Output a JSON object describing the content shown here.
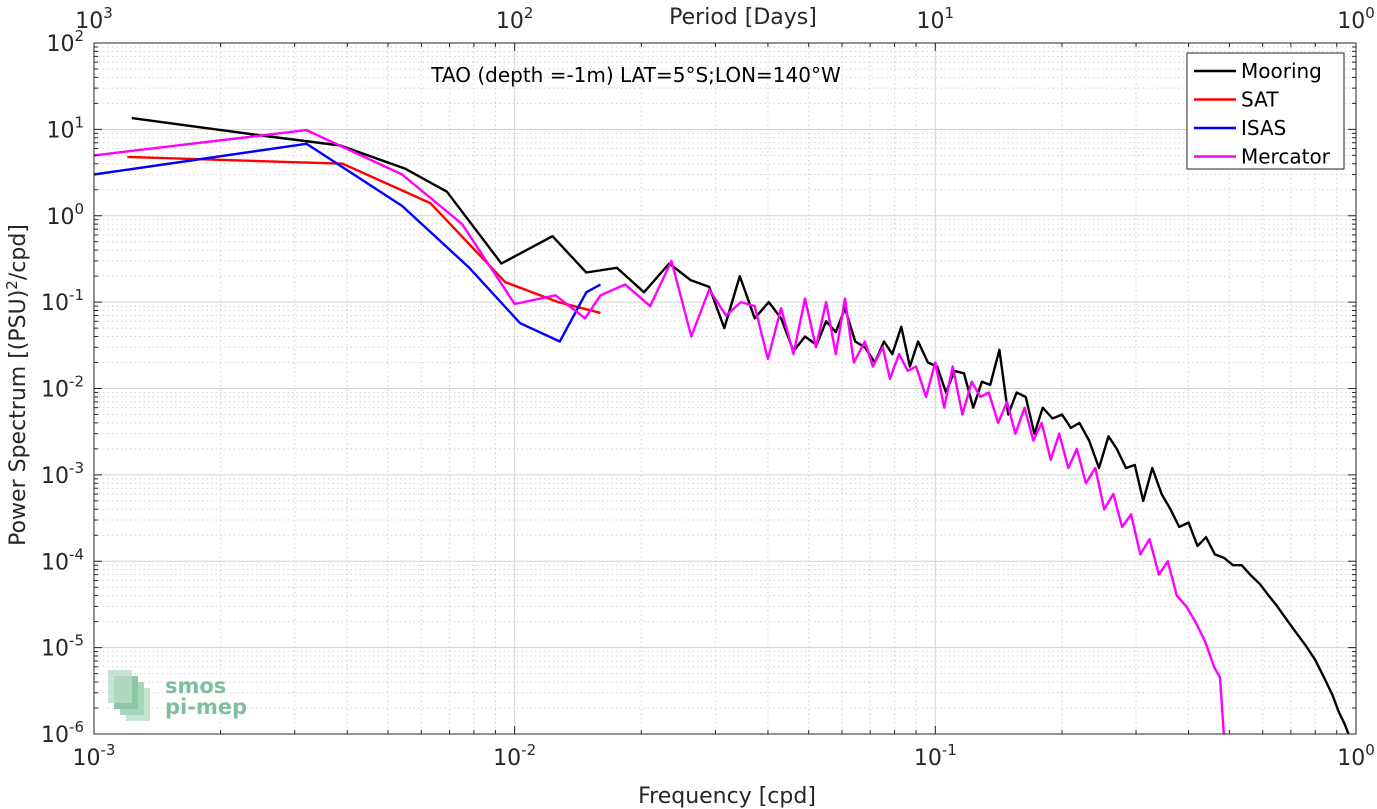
{
  "chart_data": {
    "type": "line",
    "title": "TAO (depth =-1m) LAT=5°S;LON=140°W",
    "xlabel": "Frequency [cpd]",
    "ylabel": "Power Spectrum [(PSU)²/cpd]",
    "ylabel_main": "Power Spectrum [(PSU)",
    "ylabel_sup": "2",
    "ylabel_end": "/cpd]",
    "x2label": "Period [Days]",
    "xscale": "log",
    "yscale": "log",
    "xlim": [
      0.001,
      1
    ],
    "ylim": [
      1e-06,
      100
    ],
    "grid": true,
    "legend_position": "top-right",
    "x_ticks": [
      {
        "value": 0.001,
        "base": "10",
        "exp": "-3"
      },
      {
        "value": 0.01,
        "base": "10",
        "exp": "-2"
      },
      {
        "value": 0.1,
        "base": "10",
        "exp": "-1"
      },
      {
        "value": 1,
        "base": "10",
        "exp": "0"
      }
    ],
    "x2_ticks": [
      {
        "value": 0.001,
        "base": "10",
        "exp": "3"
      },
      {
        "value": 0.01,
        "base": "10",
        "exp": "2"
      },
      {
        "value": 0.1,
        "base": "10",
        "exp": "1"
      },
      {
        "value": 1,
        "base": "10",
        "exp": "0"
      }
    ],
    "y_ticks": [
      {
        "value": 100,
        "base": "10",
        "exp": "2"
      },
      {
        "value": 10,
        "base": "10",
        "exp": "1"
      },
      {
        "value": 1,
        "base": "10",
        "exp": "0"
      },
      {
        "value": 0.1,
        "base": "10",
        "exp": "-1"
      },
      {
        "value": 0.01,
        "base": "10",
        "exp": "-2"
      },
      {
        "value": 0.001,
        "base": "10",
        "exp": "-3"
      },
      {
        "value": 0.0001,
        "base": "10",
        "exp": "-4"
      },
      {
        "value": 1e-05,
        "base": "10",
        "exp": "-5"
      },
      {
        "value": 1e-06,
        "base": "10",
        "exp": "-6"
      }
    ],
    "series": [
      {
        "name": "Mooring",
        "color": "#000000",
        "x": [
          0.00123,
          0.0025,
          0.00385,
          0.0055,
          0.0069,
          0.0093,
          0.0123,
          0.0148,
          0.0175,
          0.0203,
          0.0233,
          0.0262,
          0.029,
          0.0315,
          0.0343,
          0.0372,
          0.0402,
          0.043,
          0.046,
          0.049,
          0.0522,
          0.055,
          0.058,
          0.061,
          0.0645,
          0.068,
          0.0718,
          0.0755,
          0.079,
          0.083,
          0.087,
          0.091,
          0.096,
          0.101,
          0.106,
          0.111,
          0.117,
          0.123,
          0.129,
          0.135,
          0.142,
          0.149,
          0.156,
          0.164,
          0.172,
          0.18,
          0.19,
          0.2,
          0.21,
          0.22,
          0.232,
          0.245,
          0.258,
          0.27,
          0.284,
          0.298,
          0.312,
          0.328,
          0.345,
          0.362,
          0.38,
          0.4,
          0.42,
          0.44,
          0.462,
          0.485,
          0.51,
          0.535,
          0.56,
          0.59,
          0.62,
          0.65,
          0.68,
          0.72,
          0.76,
          0.8,
          0.84,
          0.88,
          0.91,
          0.94,
          0.96
        ],
        "y": [
          13.5,
          8.5,
          6.5,
          3.5,
          1.9,
          0.28,
          0.58,
          0.22,
          0.25,
          0.13,
          0.28,
          0.18,
          0.15,
          0.05,
          0.2,
          0.065,
          0.1,
          0.065,
          0.027,
          0.04,
          0.032,
          0.06,
          0.045,
          0.085,
          0.035,
          0.03,
          0.02,
          0.035,
          0.025,
          0.052,
          0.018,
          0.035,
          0.02,
          0.018,
          0.009,
          0.016,
          0.015,
          0.006,
          0.012,
          0.011,
          0.028,
          0.005,
          0.009,
          0.008,
          0.003,
          0.006,
          0.0045,
          0.005,
          0.0035,
          0.004,
          0.0025,
          0.0012,
          0.0028,
          0.002,
          0.0012,
          0.0013,
          0.0005,
          0.0012,
          0.0006,
          0.0004,
          0.00025,
          0.00028,
          0.00015,
          0.00019,
          0.00012,
          0.00011,
          9e-05,
          9e-05,
          7e-05,
          5.5e-05,
          4e-05,
          3e-05,
          2.2e-05,
          1.5e-05,
          1.05e-05,
          7.2e-06,
          4.5e-06,
          2.8e-06,
          1.8e-06,
          1.3e-06,
          1e-06
        ]
      },
      {
        "name": "SAT",
        "color": "#ff0000",
        "x": [
          0.0012,
          0.0039,
          0.0063,
          0.0095,
          0.0127,
          0.016
        ],
        "y": [
          4.8,
          4.0,
          1.4,
          0.17,
          0.1,
          0.075
        ]
      },
      {
        "name": "ISAS",
        "color": "#0000ff",
        "x": [
          0.001,
          0.0032,
          0.0054,
          0.0078,
          0.0103,
          0.0128,
          0.0148,
          0.016
        ],
        "y": [
          3.0,
          6.8,
          1.3,
          0.25,
          0.057,
          0.035,
          0.13,
          0.16
        ]
      },
      {
        "name": "Mercator",
        "color": "#ff00ff",
        "x": [
          0.001,
          0.0032,
          0.0054,
          0.0075,
          0.01,
          0.0125,
          0.0147,
          0.016,
          0.0183,
          0.021,
          0.0236,
          0.0263,
          0.029,
          0.0318,
          0.0345,
          0.0372,
          0.04,
          0.043,
          0.046,
          0.049,
          0.052,
          0.055,
          0.058,
          0.061,
          0.064,
          0.068,
          0.071,
          0.075,
          0.078,
          0.082,
          0.086,
          0.09,
          0.095,
          0.1,
          0.105,
          0.11,
          0.116,
          0.122,
          0.128,
          0.134,
          0.141,
          0.148,
          0.155,
          0.163,
          0.171,
          0.179,
          0.188,
          0.197,
          0.207,
          0.217,
          0.228,
          0.24,
          0.252,
          0.265,
          0.278,
          0.292,
          0.307,
          0.323,
          0.34,
          0.357,
          0.375,
          0.395,
          0.415,
          0.437,
          0.46,
          0.475,
          0.485
        ],
        "y": [
          5.0,
          9.8,
          3.0,
          0.8,
          0.095,
          0.12,
          0.065,
          0.12,
          0.16,
          0.09,
          0.3,
          0.04,
          0.14,
          0.07,
          0.1,
          0.09,
          0.022,
          0.085,
          0.025,
          0.11,
          0.03,
          0.1,
          0.025,
          0.11,
          0.02,
          0.035,
          0.018,
          0.03,
          0.013,
          0.025,
          0.016,
          0.018,
          0.008,
          0.02,
          0.006,
          0.018,
          0.005,
          0.012,
          0.008,
          0.009,
          0.004,
          0.007,
          0.003,
          0.006,
          0.0025,
          0.004,
          0.0015,
          0.003,
          0.0012,
          0.002,
          0.0008,
          0.0012,
          0.0004,
          0.0006,
          0.00025,
          0.00035,
          0.00012,
          0.00018,
          7e-05,
          0.0001,
          4e-05,
          3e-05,
          2e-05,
          1.2e-05,
          6e-06,
          4.5e-06,
          1e-06
        ]
      }
    ]
  },
  "watermark": {
    "line1": "smos",
    "line2": "pi-mep"
  }
}
